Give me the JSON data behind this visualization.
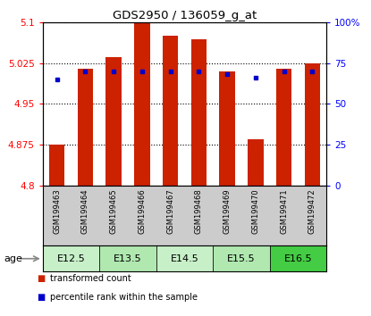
{
  "title": "GDS2950 / 136059_g_at",
  "samples": [
    "GSM199463",
    "GSM199464",
    "GSM199465",
    "GSM199466",
    "GSM199467",
    "GSM199468",
    "GSM199469",
    "GSM199470",
    "GSM199471",
    "GSM199472"
  ],
  "transformed_counts": [
    4.875,
    5.015,
    5.035,
    5.099,
    5.075,
    5.068,
    5.01,
    4.885,
    5.015,
    5.025
  ],
  "percentile_ranks": [
    65,
    70,
    70,
    70,
    70,
    70,
    68,
    66,
    70,
    70
  ],
  "y_min": 4.8,
  "y_max": 5.1,
  "y_ticks": [
    4.8,
    4.875,
    4.95,
    5.025,
    5.1
  ],
  "y_tick_labels": [
    "4.8",
    "4.875",
    "4.95",
    "5.025",
    "5.1"
  ],
  "right_y_ticks": [
    0,
    25,
    50,
    75,
    100
  ],
  "right_y_tick_labels": [
    "0",
    "25",
    "50",
    "75",
    "100%"
  ],
  "age_groups": [
    {
      "label": "E12.5",
      "samples": [
        0,
        1
      ],
      "color": "#c8f0c8"
    },
    {
      "label": "E13.5",
      "samples": [
        2,
        3
      ],
      "color": "#b0e8b0"
    },
    {
      "label": "E14.5",
      "samples": [
        4,
        5
      ],
      "color": "#c8f0c8"
    },
    {
      "label": "E15.5",
      "samples": [
        6,
        7
      ],
      "color": "#b0e8b0"
    },
    {
      "label": "E16.5",
      "samples": [
        8,
        9
      ],
      "color": "#44cc44"
    }
  ],
  "bar_color": "#cc2200",
  "percentile_color": "#0000cc",
  "bar_width": 0.55,
  "sample_bg_color": "#cccccc",
  "age_label": "age"
}
